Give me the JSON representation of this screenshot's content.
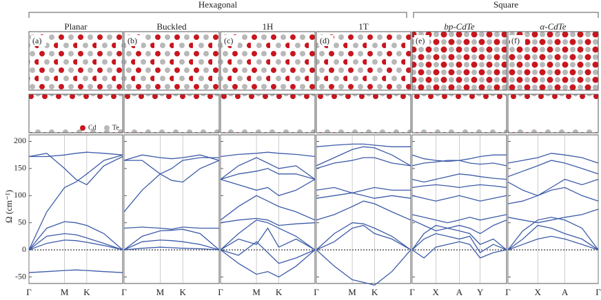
{
  "groups": [
    "Hexagonal",
    "Square"
  ],
  "legend": [
    "Cd",
    "Te"
  ],
  "ylabel": "Ω (cm⁻¹)",
  "chart_data": [
    {
      "type": "line",
      "title": "Planar",
      "panel": "(a)",
      "xlim": [
        0,
        1
      ],
      "ylim": [
        -62,
        212
      ],
      "yticks": [
        -50,
        0,
        50,
        100,
        150,
        200
      ],
      "xticks": [
        {
          "value": 0,
          "label": "Γ"
        },
        {
          "value": 0.38,
          "label": "M"
        },
        {
          "value": 0.617,
          "label": "K"
        }
      ],
      "x": [
        0,
        0.19,
        0.38,
        0.5,
        0.617,
        0.8,
        1
      ],
      "color": "#3b5aa8",
      "series": [
        {
          "values": [
            -42,
            -40,
            -38,
            -37,
            -38,
            -40,
            -42
          ]
        },
        {
          "values": [
            0,
            12,
            18,
            17,
            14,
            8,
            0
          ]
        },
        {
          "values": [
            0,
            25,
            30,
            28,
            22,
            12,
            0
          ]
        },
        {
          "values": [
            0,
            40,
            52,
            50,
            45,
            30,
            0
          ]
        },
        {
          "values": [
            0,
            70,
            115,
            125,
            140,
            165,
            175
          ]
        },
        {
          "values": [
            172,
            178,
            150,
            130,
            120,
            155,
            172
          ]
        },
        {
          "values": [
            172,
            172,
            175,
            178,
            180,
            178,
            175
          ]
        }
      ]
    },
    {
      "type": "line",
      "title": "Buckled",
      "panel": "(b)",
      "xlim": [
        0,
        1
      ],
      "ylim": [
        -62,
        212
      ],
      "xticks": [
        {
          "value": 0,
          "label": "Γ"
        },
        {
          "value": 0.38,
          "label": "M"
        },
        {
          "value": 0.617,
          "label": "K"
        }
      ],
      "x": [
        0,
        0.19,
        0.38,
        0.5,
        0.617,
        0.8,
        1
      ],
      "color": "#3b5aa8",
      "series": [
        {
          "values": [
            0,
            3,
            5,
            4,
            3,
            2,
            0
          ]
        },
        {
          "values": [
            0,
            15,
            18,
            17,
            15,
            10,
            0
          ]
        },
        {
          "values": [
            0,
            25,
            35,
            36,
            38,
            30,
            0
          ]
        },
        {
          "values": [
            40,
            42,
            40,
            38,
            42,
            40,
            40
          ]
        },
        {
          "values": [
            70,
            110,
            140,
            150,
            165,
            170,
            170
          ]
        },
        {
          "values": [
            165,
            165,
            140,
            128,
            125,
            150,
            165
          ]
        },
        {
          "values": [
            165,
            175,
            170,
            168,
            170,
            175,
            165
          ]
        }
      ]
    },
    {
      "type": "line",
      "title": "1H",
      "panel": "(c)",
      "xlim": [
        0,
        1
      ],
      "ylim": [
        -62,
        212
      ],
      "xticks": [
        {
          "value": 0,
          "label": "Γ"
        },
        {
          "value": 0.38,
          "label": "M"
        },
        {
          "value": 0.617,
          "label": "K"
        }
      ],
      "x": [
        0,
        0.19,
        0.38,
        0.5,
        0.617,
        0.8,
        1
      ],
      "color": "#3b5aa8",
      "series": [
        {
          "values": [
            0,
            -25,
            -45,
            -40,
            -50,
            -30,
            0
          ]
        },
        {
          "values": [
            0,
            -10,
            15,
            -5,
            -25,
            -15,
            0
          ]
        },
        {
          "values": [
            0,
            20,
            10,
            40,
            5,
            20,
            0
          ]
        },
        {
          "values": [
            0,
            30,
            55,
            50,
            40,
            25,
            0
          ]
        },
        {
          "values": [
            50,
            55,
            58,
            55,
            45,
            48,
            50
          ]
        },
        {
          "values": [
            55,
            80,
            100,
            90,
            80,
            70,
            55
          ]
        },
        {
          "values": [
            130,
            120,
            110,
            115,
            100,
            110,
            130
          ]
        },
        {
          "values": [
            130,
            140,
            145,
            150,
            140,
            140,
            130
          ]
        },
        {
          "values": [
            130,
            155,
            170,
            160,
            150,
            155,
            130
          ]
        },
        {
          "values": [
            172,
            176,
            178,
            180,
            178,
            176,
            172
          ]
        }
      ]
    },
    {
      "type": "line",
      "title": "1T",
      "panel": "(d)",
      "xlim": [
        0,
        1
      ],
      "ylim": [
        -62,
        212
      ],
      "xticks": [
        {
          "value": 0,
          "label": "Γ"
        },
        {
          "value": 0.38,
          "label": "M"
        },
        {
          "value": 0.617,
          "label": "K"
        }
      ],
      "x": [
        0,
        0.19,
        0.38,
        0.5,
        0.617,
        0.8,
        1
      ],
      "color": "#3b5aa8",
      "series": [
        {
          "values": [
            0,
            -30,
            -55,
            -60,
            -65,
            -40,
            0
          ]
        },
        {
          "values": [
            0,
            15,
            40,
            45,
            30,
            20,
            0
          ]
        },
        {
          "values": [
            0,
            30,
            50,
            48,
            40,
            25,
            0
          ]
        },
        {
          "values": [
            55,
            65,
            80,
            90,
            85,
            70,
            55
          ]
        },
        {
          "values": [
            95,
            100,
            105,
            100,
            95,
            100,
            95
          ]
        },
        {
          "values": [
            110,
            115,
            105,
            110,
            115,
            110,
            110
          ]
        },
        {
          "values": [
            150,
            160,
            165,
            170,
            170,
            160,
            155
          ]
        },
        {
          "values": [
            155,
            170,
            185,
            190,
            188,
            175,
            155
          ]
        },
        {
          "values": [
            190,
            193,
            195,
            195,
            193,
            190,
            190
          ]
        }
      ]
    },
    {
      "type": "line",
      "title": "bp-CdTe",
      "panel": "(e)",
      "xlim": [
        0,
        1
      ],
      "ylim": [
        -62,
        212
      ],
      "xticks": [
        {
          "value": 0,
          "label": "Γ"
        },
        {
          "value": 0.25,
          "label": "X"
        },
        {
          "value": 0.5,
          "label": "A"
        },
        {
          "value": 0.72,
          "label": "Y"
        }
      ],
      "x": [
        0,
        0.125,
        0.25,
        0.375,
        0.5,
        0.61,
        0.72,
        0.86,
        1
      ],
      "color": "#3b5aa8",
      "series": [
        {
          "values": [
            0,
            -15,
            5,
            10,
            15,
            10,
            -15,
            -5,
            0
          ]
        },
        {
          "values": [
            0,
            20,
            30,
            25,
            20,
            25,
            -5,
            10,
            0
          ]
        },
        {
          "values": [
            0,
            30,
            45,
            40,
            35,
            30,
            10,
            20,
            0
          ]
        },
        {
          "values": [
            55,
            45,
            35,
            40,
            45,
            40,
            30,
            45,
            55
          ]
        },
        {
          "values": [
            65,
            60,
            55,
            50,
            55,
            60,
            55,
            60,
            65
          ]
        },
        {
          "values": [
            100,
            95,
            90,
            95,
            100,
            95,
            90,
            95,
            100
          ]
        },
        {
          "values": [
            115,
            118,
            120,
            118,
            115,
            118,
            120,
            118,
            115
          ]
        },
        {
          "values": [
            130,
            125,
            130,
            135,
            140,
            138,
            135,
            132,
            130
          ]
        },
        {
          "values": [
            155,
            160,
            162,
            165,
            165,
            160,
            158,
            160,
            155
          ]
        },
        {
          "values": [
            175,
            168,
            165,
            163,
            165,
            168,
            172,
            175,
            175
          ]
        }
      ]
    },
    {
      "type": "line",
      "title": "α-CdTe",
      "panel": "(f)",
      "xlim": [
        0,
        1
      ],
      "ylim": [
        -62,
        212
      ],
      "xticks": [
        {
          "value": 0,
          "label": "Γ"
        },
        {
          "value": 0.33,
          "label": "X"
        },
        {
          "value": 0.63,
          "label": "A"
        },
        {
          "value": 1,
          "label": "Γ"
        }
      ],
      "x": [
        0,
        0.165,
        0.33,
        0.48,
        0.63,
        0.82,
        1
      ],
      "color": "#3b5aa8",
      "series": [
        {
          "values": [
            0,
            10,
            20,
            25,
            20,
            10,
            0
          ]
        },
        {
          "values": [
            0,
            20,
            45,
            40,
            30,
            20,
            0
          ]
        },
        {
          "values": [
            0,
            35,
            55,
            60,
            55,
            40,
            0
          ]
        },
        {
          "values": [
            60,
            55,
            50,
            55,
            60,
            65,
            75
          ]
        },
        {
          "values": [
            85,
            90,
            100,
            110,
            115,
            100,
            90
          ]
        },
        {
          "values": [
            125,
            110,
            100,
            115,
            130,
            120,
            130
          ]
        },
        {
          "values": [
            135,
            145,
            155,
            165,
            160,
            150,
            140
          ]
        },
        {
          "values": [
            160,
            165,
            170,
            178,
            175,
            170,
            160
          ]
        }
      ]
    }
  ]
}
